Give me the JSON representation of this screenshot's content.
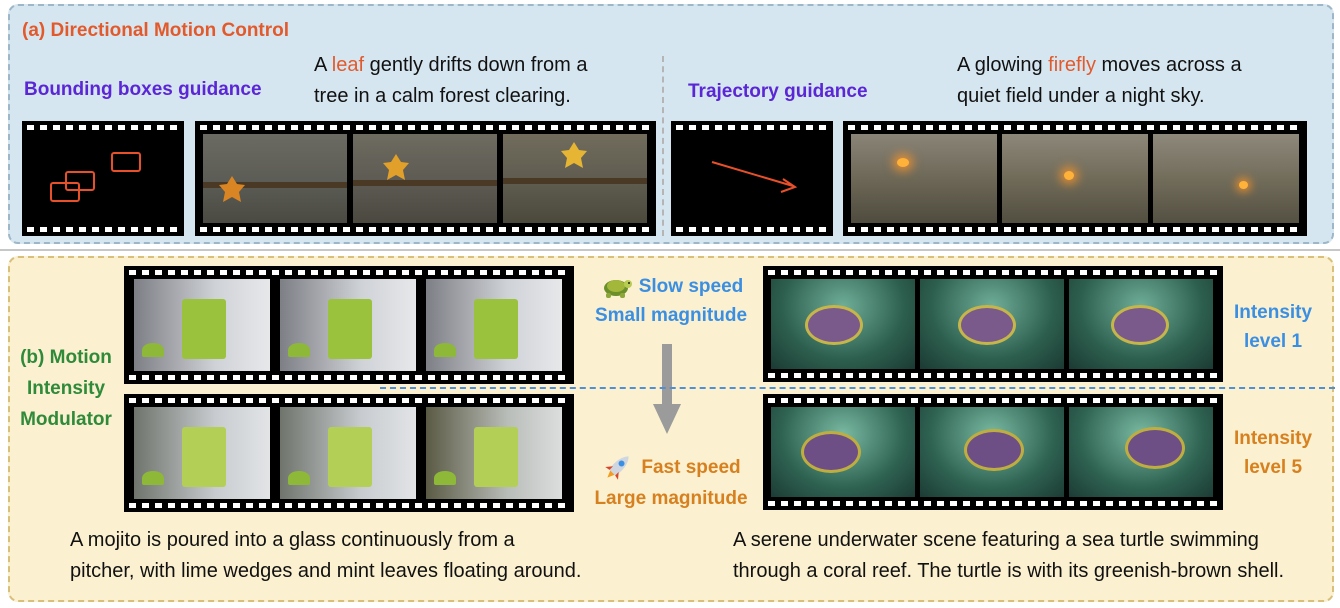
{
  "panel_a": {
    "title": "(a) Directional Motion Control",
    "bbox_label": "Bounding boxes guidance",
    "prompt1_parts": [
      "A ",
      "leaf",
      " gently drifts down from a"
    ],
    "prompt1_line2": "tree in a calm forest clearing.",
    "traj_label": "Trajectory guidance",
    "prompt2_parts": [
      "A glowing ",
      "firefly",
      " moves across a"
    ],
    "prompt2_line2": "quiet field under a night sky."
  },
  "panel_b": {
    "label_lines": [
      "(b) Motion",
      "Intensity",
      "Modulator"
    ],
    "slow_speed": "Slow speed",
    "small_magnitude": "Small magnitude",
    "fast_speed": "Fast speed",
    "large_magnitude": "Large magnitude",
    "intensity1": [
      "Intensity",
      "level 1"
    ],
    "intensity5": [
      "Intensity",
      "level 5"
    ],
    "mojito_caption": [
      "A mojito is poured into a glass continuously from a",
      "pitcher, with lime wedges and mint leaves floating around."
    ],
    "turtle_caption": [
      "A serene underwater scene featuring a sea turtle swimming",
      "through a coral reef. The turtle is with its greenish-brown shell."
    ]
  },
  "icons": {
    "slow": "turtle-icon",
    "fast": "rocket-icon",
    "arrow": "down-arrow-icon"
  },
  "colors": {
    "accent_red": "#e25a2c",
    "guidance_purple": "#5b26d6",
    "slow_blue": "#3a8fe3",
    "fast_orange": "#d7801f",
    "modulator_green": "#2f8a3a"
  }
}
